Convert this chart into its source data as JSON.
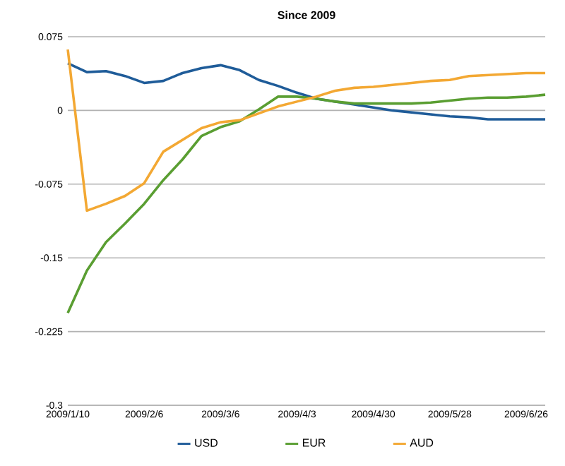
{
  "chart_data": {
    "type": "line",
    "title": "Since 2009",
    "categories": [
      "2009/1/10",
      null,
      null,
      null,
      "2009/2/6",
      null,
      null,
      null,
      "2009/3/6",
      null,
      null,
      null,
      "2009/4/3",
      null,
      null,
      null,
      "2009/4/30",
      null,
      null,
      null,
      "2009/5/28",
      null,
      null,
      null,
      "2009/6/26",
      null
    ],
    "series": [
      {
        "name": "USD",
        "color": "#1f5c99",
        "values": [
          0.048,
          0.039,
          0.04,
          0.035,
          0.028,
          0.03,
          0.038,
          0.043,
          0.046,
          0.041,
          0.031,
          0.025,
          0.018,
          0.012,
          0.009,
          0.006,
          0.003,
          0.0,
          -0.002,
          -0.004,
          -0.006,
          -0.007,
          -0.009,
          -0.009,
          -0.009,
          -0.009
        ]
      },
      {
        "name": "EUR",
        "color": "#5a9e32",
        "values": [
          -0.206,
          -0.163,
          -0.134,
          -0.115,
          -0.095,
          -0.071,
          -0.05,
          -0.026,
          -0.017,
          -0.011,
          0.001,
          0.014,
          0.014,
          0.012,
          0.009,
          0.007,
          0.007,
          0.007,
          0.007,
          0.008,
          0.01,
          0.012,
          0.013,
          0.013,
          0.014,
          0.016
        ]
      },
      {
        "name": "AUD",
        "color": "#f3a833",
        "values": [
          0.062,
          -0.102,
          -0.095,
          -0.087,
          -0.074,
          -0.042,
          -0.03,
          -0.018,
          -0.012,
          -0.01,
          -0.003,
          0.004,
          0.009,
          0.014,
          0.02,
          0.023,
          0.024,
          0.026,
          0.028,
          0.03,
          0.031,
          0.035,
          0.036,
          0.037,
          0.038,
          0.038
        ]
      }
    ],
    "ylim": [
      -0.3,
      0.075
    ],
    "yticks": [
      -0.3,
      -0.225,
      -0.15,
      -0.075,
      0,
      0.075
    ],
    "grid": "y",
    "legend": "bottom",
    "marker": "none",
    "line_style": "solid"
  }
}
